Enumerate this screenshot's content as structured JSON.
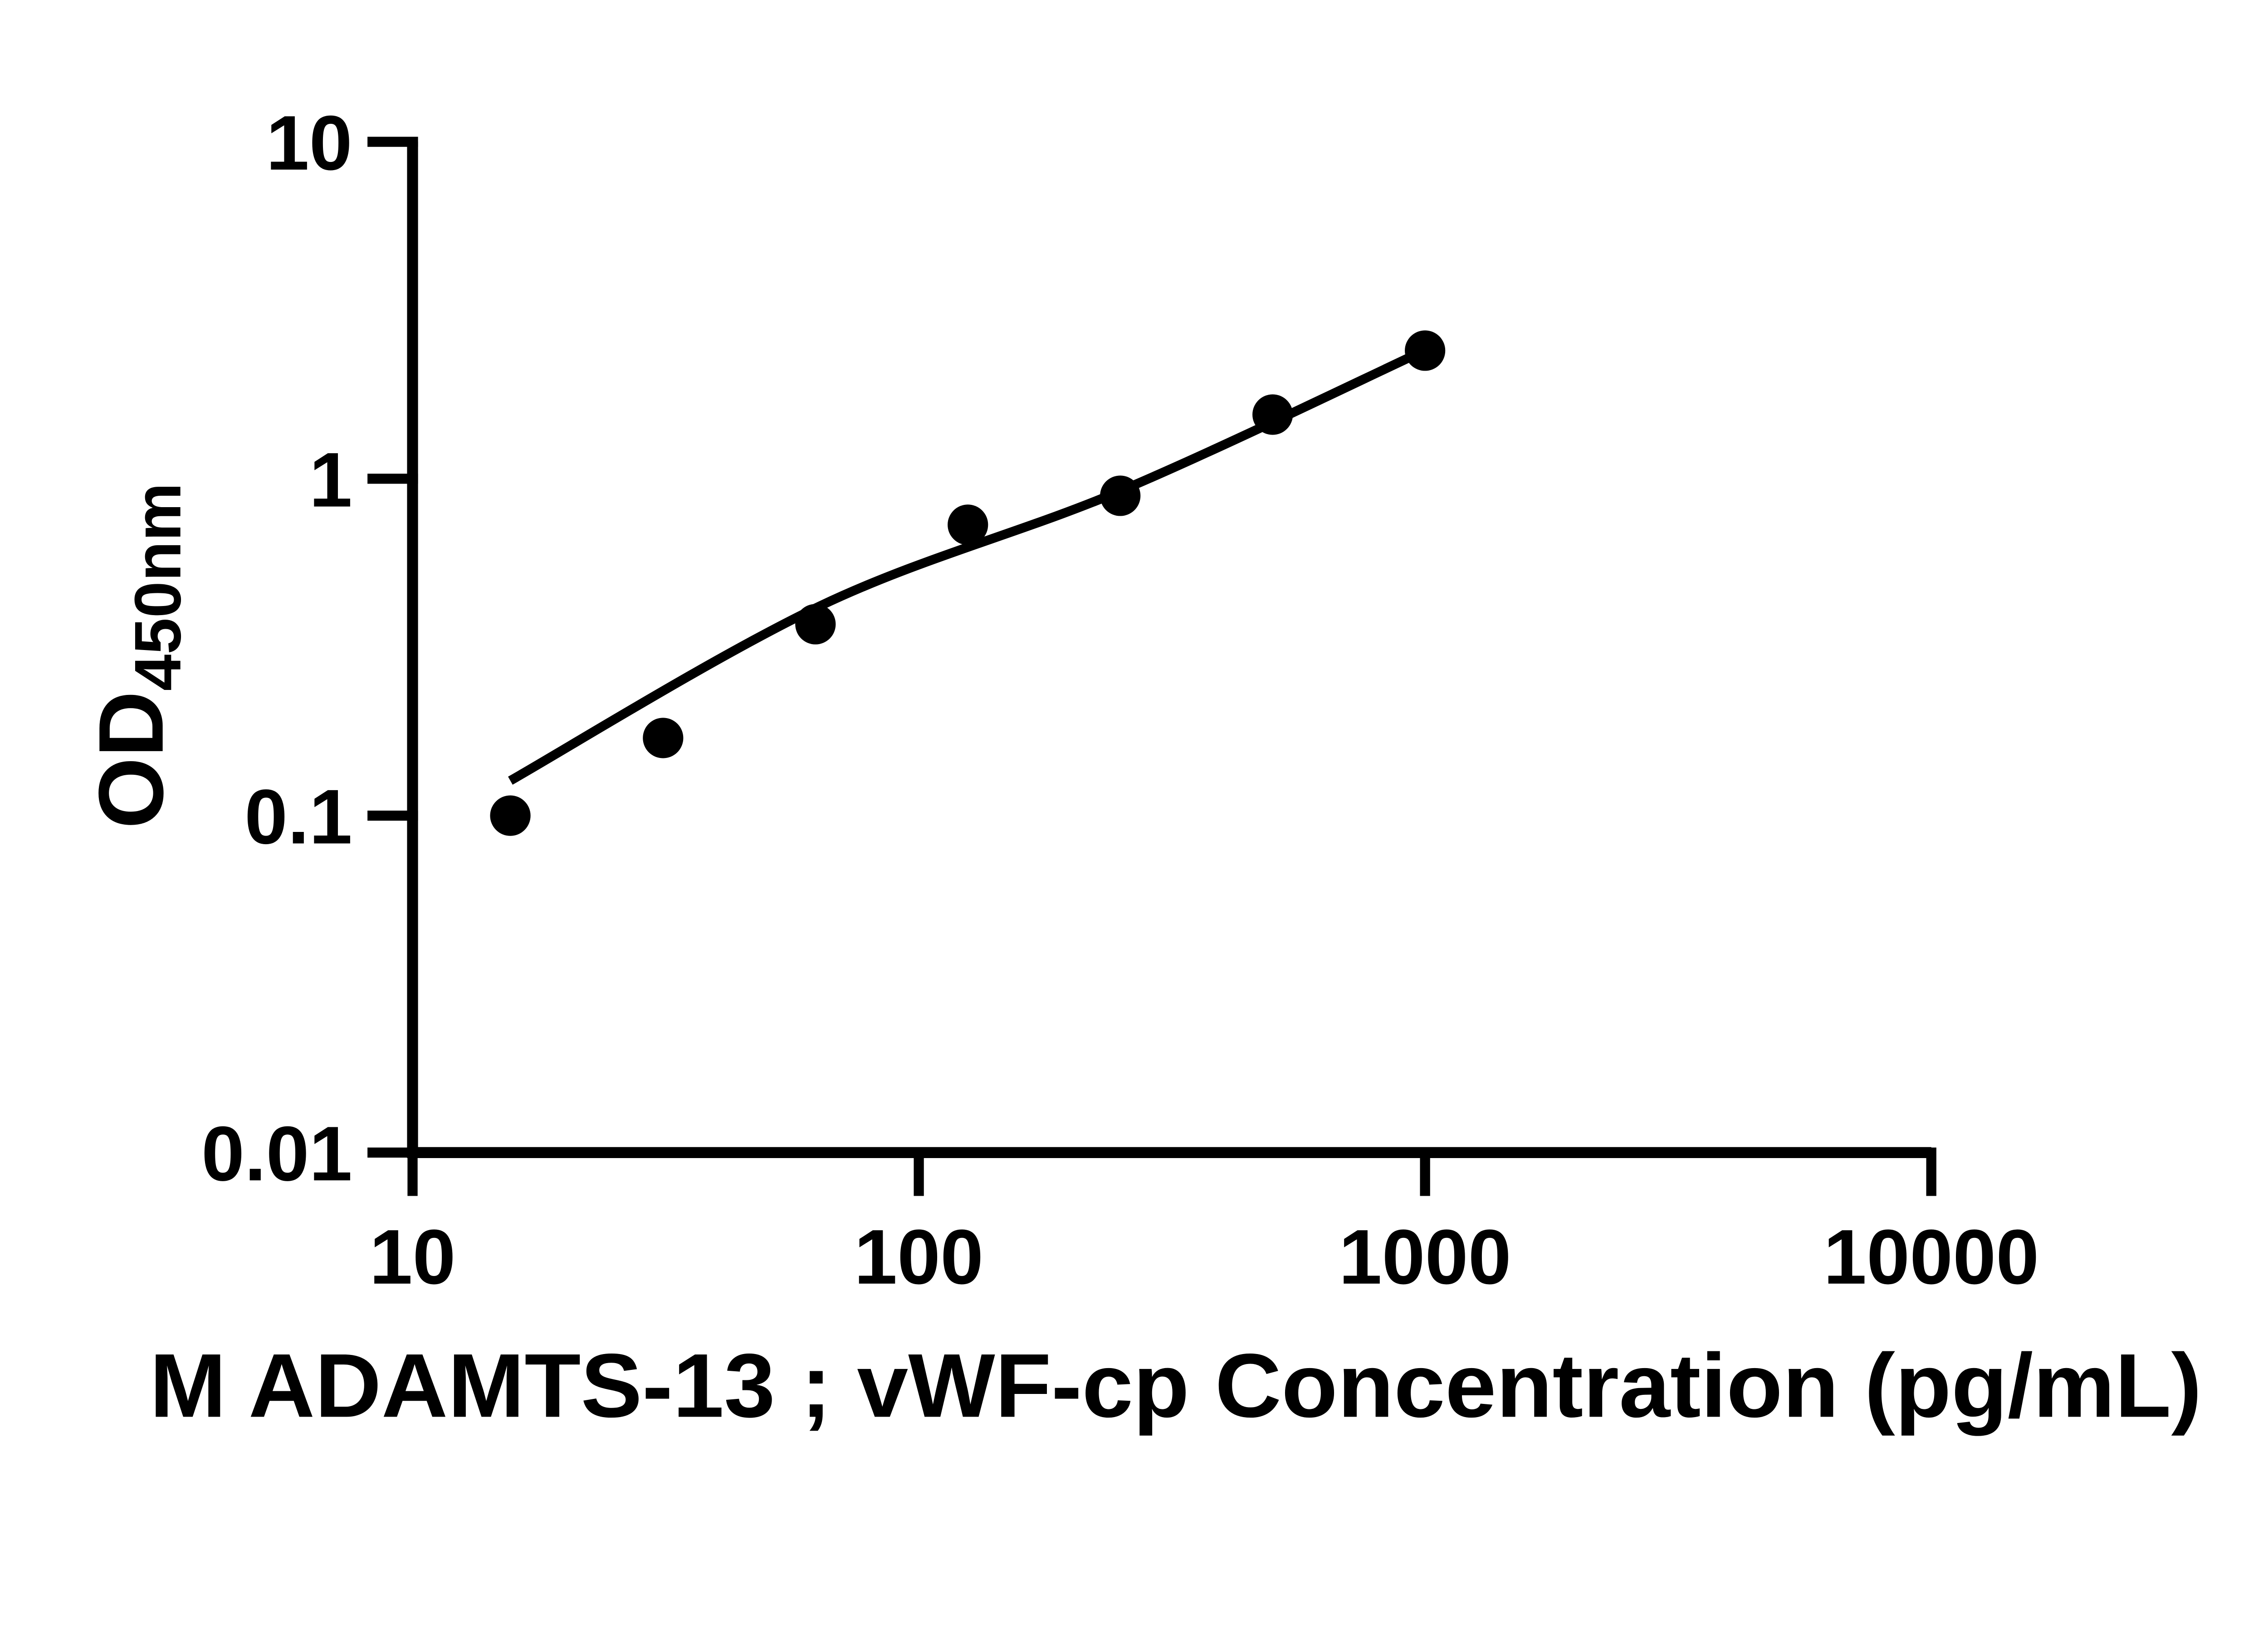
{
  "chart_data": {
    "type": "scatter",
    "title": "",
    "xlabel": "M ADAMTS-13 ; vWF-cp Concentration (pg/mL)",
    "ylabel": {
      "main": "OD",
      "subscript": "450nm"
    },
    "x_scale": "log",
    "y_scale": "log",
    "xlim": [
      10,
      10000
    ],
    "ylim": [
      0.01,
      10
    ],
    "x_ticks": [
      "10",
      "100",
      "1000",
      "10000"
    ],
    "y_ticks": [
      "10",
      "1",
      "0.1",
      "0.01"
    ],
    "grid": false,
    "legend": "none",
    "points": [
      {
        "x": 15.6,
        "y": 0.1
      },
      {
        "x": 31.25,
        "y": 0.17
      },
      {
        "x": 62.5,
        "y": 0.37
      },
      {
        "x": 125,
        "y": 0.73
      },
      {
        "x": 250,
        "y": 0.89
      },
      {
        "x": 500,
        "y": 1.55
      },
      {
        "x": 1000,
        "y": 2.4
      }
    ],
    "fit_curve": [
      {
        "x": 15.6,
        "y": 0.127
      },
      {
        "x": 64,
        "y": 0.42
      },
      {
        "x": 250,
        "y": 0.92
      },
      {
        "x": 990,
        "y": 2.39
      }
    ],
    "colors": {
      "points": "#000000",
      "curve": "#000000",
      "axis": "#000000",
      "background": "#ffffff"
    }
  }
}
